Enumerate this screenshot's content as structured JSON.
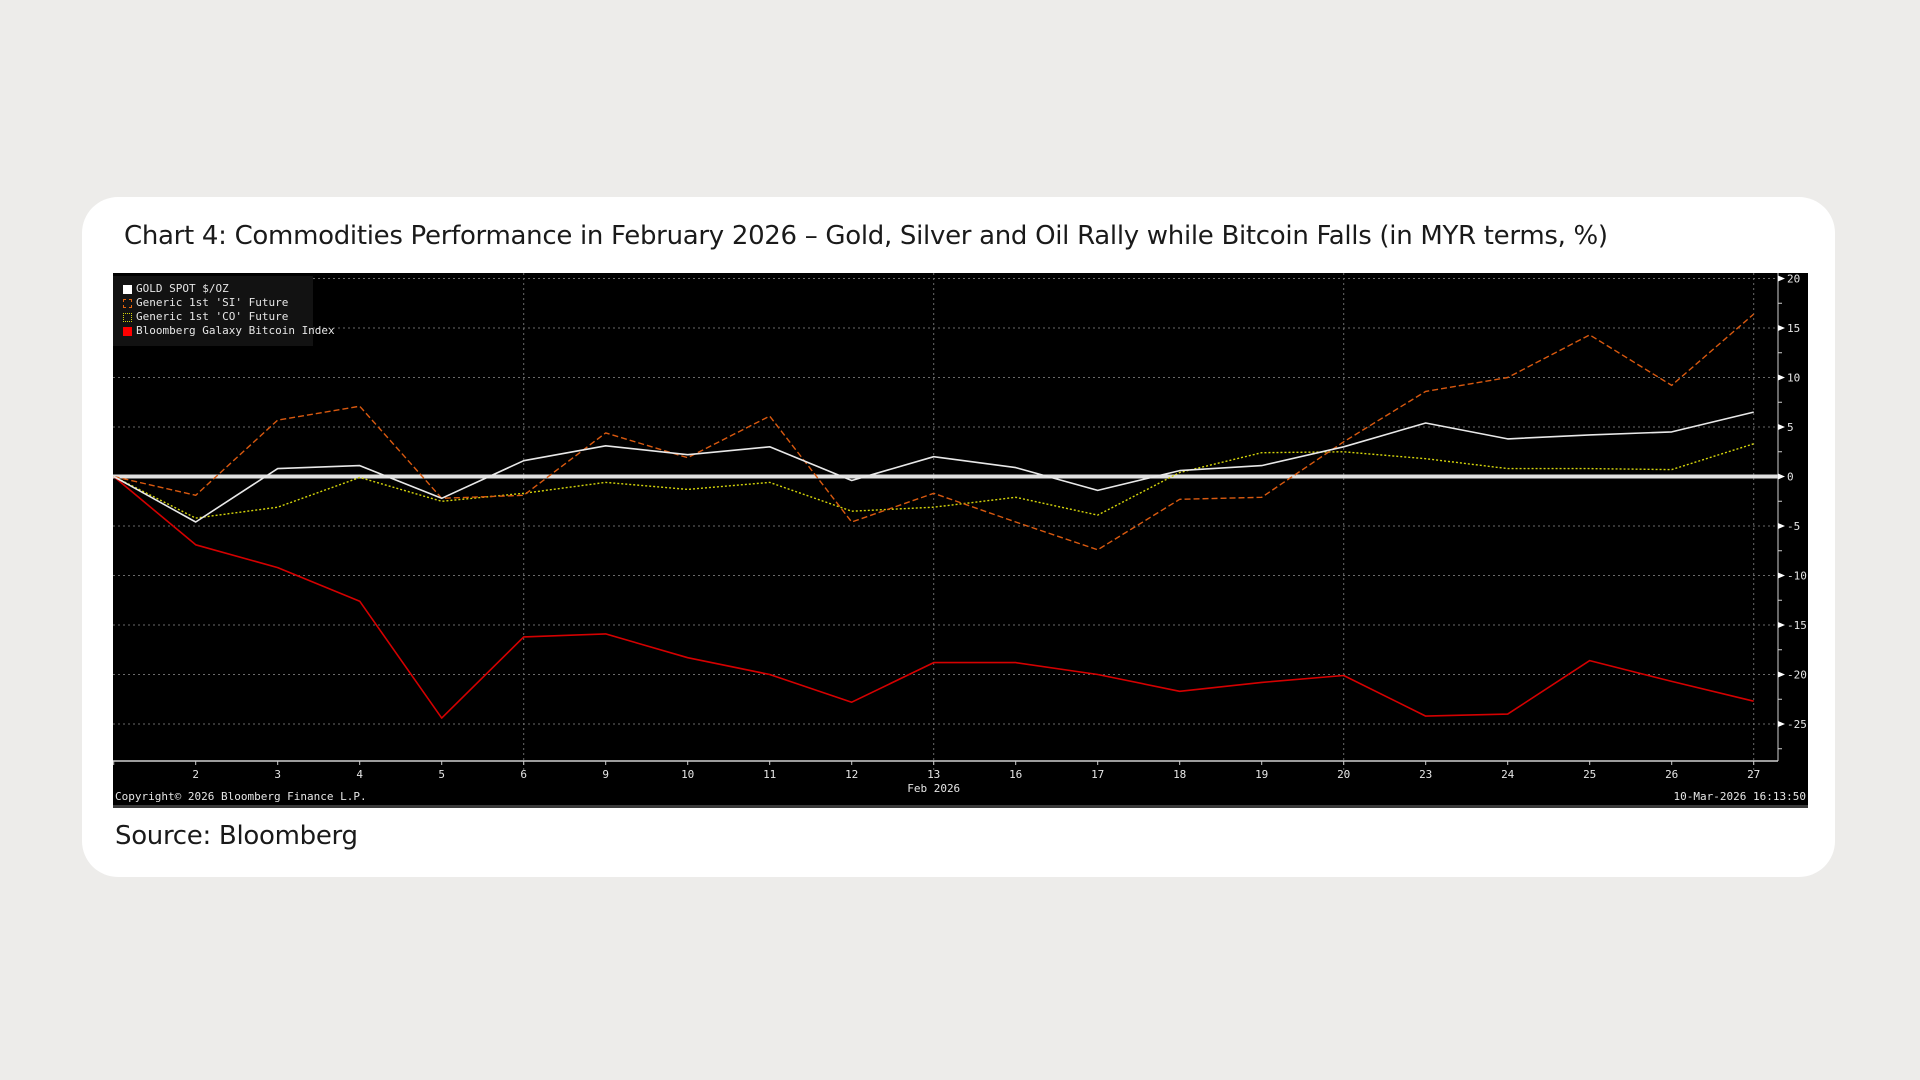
{
  "title": "Chart 4: Commodities Performance in February 2026 – Gold, Silver and Oil Rally while Bitcoin Falls (in MYR terms, %)",
  "source": "Source: Bloomberg",
  "footer": {
    "copyright": "Copyright© 2026 Bloomberg Finance L.P.",
    "timestamp": "10-Mar-2026 16:13:50"
  },
  "colors": {
    "background": "#000000",
    "gold": "#e8e8e8",
    "silver": "#d9590f",
    "oil": "#d4d40a",
    "bitcoin": "#d40000",
    "zero_line": "#e0e0e0",
    "grid": "#6a6a6a",
    "page": "#edecea",
    "card": "#ffffff"
  },
  "legend": [
    {
      "label": "GOLD SPOT $/OZ",
      "style": "solid-fill",
      "color": "#ffffff"
    },
    {
      "label": "Generic 1st 'SI' Future",
      "style": "dashed-box",
      "color": "#e0620f"
    },
    {
      "label": "Generic 1st 'CO' Future",
      "style": "dotted-box",
      "color": "#d4d40a"
    },
    {
      "label": "Bloomberg Galaxy Bitcoin Index",
      "style": "solid-fill",
      "color": "#ff0000"
    }
  ],
  "chart_data": {
    "type": "line",
    "title": "Chart 4: Commodities Performance in February 2026 – Gold, Silver and Oil Rally while Bitcoin Falls (in MYR terms, %)",
    "xlabel": "Feb 2026",
    "ylabel": "%",
    "ylim": [
      -28,
      21
    ],
    "yticks": [
      20,
      15,
      10,
      5,
      0,
      -5,
      -10,
      -15,
      -20,
      -25
    ],
    "x_tick_labels": [
      "2",
      "3",
      "4",
      "5",
      "6",
      "9",
      "10",
      "11",
      "12",
      "13",
      "16",
      "17",
      "18",
      "19",
      "20",
      "23",
      "24",
      "25",
      "26",
      "27"
    ],
    "x": [
      "1",
      "2",
      "3",
      "4",
      "5",
      "6",
      "9",
      "10",
      "11",
      "12",
      "13",
      "16",
      "17",
      "18",
      "19",
      "20",
      "23",
      "24",
      "25",
      "26",
      "27"
    ],
    "grid": true,
    "legend_position": "top-left",
    "y_axis_side": "right",
    "series": [
      {
        "name": "GOLD SPOT $/OZ",
        "values": [
          0,
          -4.6,
          0.8,
          1.1,
          -2.2,
          1.6,
          3.1,
          2.2,
          3.0,
          -0.4,
          2.0,
          0.9,
          -1.4,
          0.6,
          1.1,
          3.0,
          5.4,
          3.8,
          4.2,
          4.5,
          6.5
        ]
      },
      {
        "name": "Generic 1st 'SI' Future",
        "values": [
          0,
          -1.9,
          5.7,
          7.1,
          -2.2,
          -1.9,
          4.4,
          1.9,
          6.1,
          -4.6,
          -1.7,
          -4.6,
          -7.4,
          -2.3,
          -2.1,
          3.5,
          8.6,
          10.0,
          14.3,
          9.2,
          16.4
        ]
      },
      {
        "name": "Generic 1st 'CO' Future",
        "values": [
          0,
          -4.2,
          -3.1,
          -0.1,
          -2.5,
          -1.7,
          -0.6,
          -1.3,
          -0.6,
          -3.5,
          -3.1,
          -2.1,
          -3.9,
          0.4,
          2.4,
          2.5,
          1.8,
          0.8,
          0.8,
          0.7,
          3.3
        ]
      },
      {
        "name": "Bloomberg Galaxy Bitcoin Index",
        "values": [
          0,
          -6.9,
          -9.2,
          -12.6,
          -24.4,
          -16.2,
          -15.9,
          -18.3,
          -20.0,
          -22.8,
          -18.8,
          -18.8,
          -20.0,
          -21.7,
          -20.8,
          -20.1,
          -24.2,
          -24.0,
          -18.6,
          -20.7,
          -22.7
        ]
      }
    ]
  }
}
